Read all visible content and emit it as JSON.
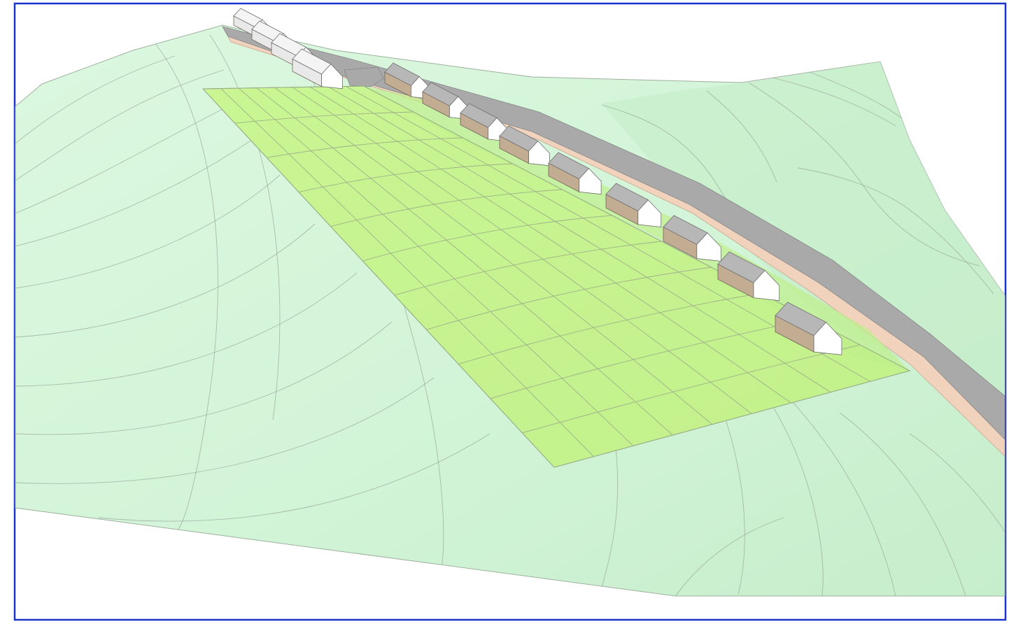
{
  "view": {
    "type": "3d-site-model",
    "frame_color": "#1a35c8",
    "background": "#ffffff"
  },
  "terrain": {
    "color_light": "#d8f7dd",
    "color_mid": "#c9f0cf",
    "contour_color": "#9aa89a"
  },
  "development_plot": {
    "fill": "#c6f38f",
    "grid_line_color": "#9fb08a",
    "grid_rows": 11,
    "grid_cols": 9
  },
  "road": {
    "surface": "#a9a9a9",
    "verge": "#f0d2bd"
  },
  "houses": {
    "existing_count": 4,
    "proposed_count": 10,
    "roof_color": "#b7b7b7",
    "wall_color": "#c2ad93",
    "gable_color": "#ffffff",
    "existing_color": "#f4f4f4"
  }
}
